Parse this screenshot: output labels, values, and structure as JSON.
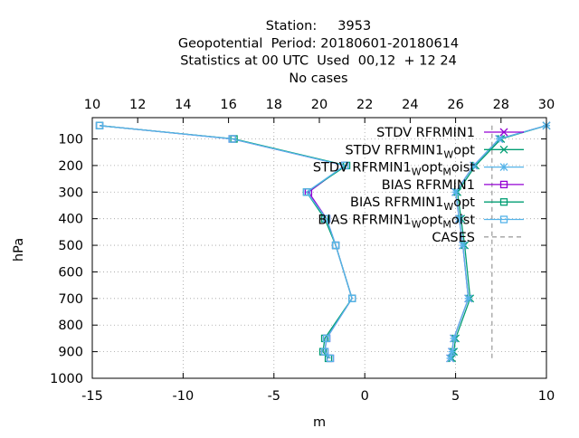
{
  "chart_data": {
    "type": "line",
    "title_lines": [
      "Station:     3953",
      "Geopotential  Period: 20180601-20180614",
      "Statistics at 00 UTC  Used  00,12  + 12 24",
      "No cases"
    ],
    "xlabel": "m",
    "ylabel": "hPa",
    "xlim": [
      -15,
      10
    ],
    "ylim": [
      1000,
      20
    ],
    "y_reversed": true,
    "x_ticks": [
      "-15",
      "-10",
      "-5",
      "0",
      "5",
      "10"
    ],
    "x_tick_values": [
      -15,
      -10,
      -5,
      0,
      5,
      10
    ],
    "x2lim": [
      10,
      30
    ],
    "x2_ticks": [
      "10",
      "12",
      "14",
      "16",
      "18",
      "20",
      "22",
      "24",
      "26",
      "28",
      "30"
    ],
    "x2_tick_values": [
      10,
      12,
      14,
      16,
      18,
      20,
      22,
      24,
      26,
      28,
      30
    ],
    "y_ticks": [
      "100",
      "200",
      "300",
      "400",
      "500",
      "600",
      "700",
      "800",
      "900",
      "1000"
    ],
    "y_tick_values": [
      100,
      200,
      300,
      400,
      500,
      600,
      700,
      800,
      900,
      1000
    ],
    "grid": true,
    "legend_position": "top-right",
    "series": [
      {
        "name": "STDV RFRMIN1",
        "name_parts": [
          [
            "STDV RFRMIN1",
            ""
          ]
        ],
        "color": "#9400d3",
        "marker": "x",
        "dash": "",
        "x": [
          10.0,
          7.4,
          6.0,
          5.0,
          5.2,
          5.4,
          5.7,
          4.9,
          4.8,
          4.7
        ],
        "y": [
          50,
          100,
          200,
          300,
          400,
          500,
          700,
          850,
          900,
          925
        ]
      },
      {
        "name": "STDV RFRMIN1_Wopt",
        "name_parts": [
          [
            "STDV RFRMIN1",
            ""
          ],
          [
            "W",
            "sub"
          ],
          [
            "opt",
            ""
          ]
        ],
        "color": "#009e73",
        "marker": "x",
        "dash": "",
        "x": [
          10.0,
          7.5,
          6.1,
          5.1,
          5.3,
          5.5,
          5.8,
          5.0,
          4.9,
          4.8
        ],
        "y": [
          50,
          100,
          200,
          300,
          400,
          500,
          700,
          850,
          900,
          925
        ]
      },
      {
        "name": "STDV RFRMIN1_Wopt_Moist",
        "name_parts": [
          [
            "STDV RFRMIN1",
            ""
          ],
          [
            "W",
            "sub"
          ],
          [
            "opt",
            ""
          ],
          [
            "M",
            "sub"
          ],
          [
            "oist",
            ""
          ]
        ],
        "color": "#56b4e9",
        "marker": "star",
        "dash": "",
        "x": [
          10.0,
          7.4,
          6.0,
          5.0,
          5.2,
          5.4,
          5.7,
          4.9,
          4.8,
          4.7
        ],
        "y": [
          50,
          100,
          200,
          300,
          400,
          500,
          700,
          850,
          900,
          925
        ]
      },
      {
        "name": "BIAS RFRMIN1",
        "name_parts": [
          [
            "BIAS RFRMIN1",
            ""
          ]
        ],
        "color": "#9400d3",
        "marker": "box",
        "dash": "",
        "x": [
          -14.6,
          -7.3,
          -1.1,
          -3.1,
          -2.1,
          -1.6,
          -0.7,
          -2.1,
          -2.2,
          -1.9
        ],
        "y": [
          50,
          100,
          200,
          300,
          400,
          500,
          700,
          850,
          900,
          925
        ]
      },
      {
        "name": "BIAS RFRMIN1_Wopt",
        "name_parts": [
          [
            "BIAS RFRMIN1",
            ""
          ],
          [
            "W",
            "sub"
          ],
          [
            "opt",
            ""
          ]
        ],
        "color": "#009e73",
        "marker": "box",
        "dash": "",
        "x": [
          -14.6,
          -7.2,
          -1.0,
          -3.2,
          -2.2,
          -1.6,
          -0.7,
          -2.2,
          -2.3,
          -2.0
        ],
        "y": [
          50,
          100,
          200,
          300,
          400,
          500,
          700,
          850,
          900,
          925
        ]
      },
      {
        "name": "BIAS RFRMIN1_Wopt_Moist",
        "name_parts": [
          [
            "BIAS RFRMIN1",
            ""
          ],
          [
            "W",
            "sub"
          ],
          [
            "opt",
            ""
          ],
          [
            "M",
            "sub"
          ],
          [
            "oist",
            ""
          ]
        ],
        "color": "#56b4e9",
        "marker": "box",
        "dash": "",
        "x": [
          -14.6,
          -7.3,
          -1.1,
          -3.2,
          -2.1,
          -1.6,
          -0.7,
          -2.1,
          -2.2,
          -1.9
        ],
        "y": [
          50,
          100,
          200,
          300,
          400,
          500,
          700,
          850,
          900,
          925
        ]
      },
      {
        "name": "CASES",
        "name_parts": [
          [
            "CASES",
            ""
          ]
        ],
        "color": "#a0a0a0",
        "marker": "",
        "dash": "5,4",
        "x": [
          27.6,
          27.6
        ],
        "y": [
          50,
          925
        ],
        "axis": "x2"
      }
    ]
  }
}
